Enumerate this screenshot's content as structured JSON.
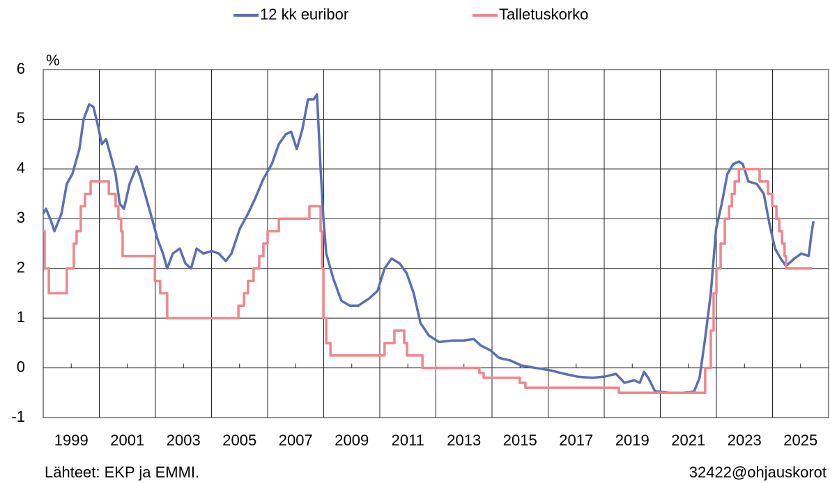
{
  "chart_data": {
    "type": "line",
    "y_label": "%",
    "source": "Lähteet: EKP ja EMMI.",
    "credit": "32422@ohjauskorot",
    "xlim": [
      1998,
      2026
    ],
    "xticks": [
      1999,
      2001,
      2003,
      2005,
      2007,
      2009,
      2011,
      2013,
      2015,
      2017,
      2019,
      2021,
      2023,
      2025
    ],
    "xgrid": [
      2000,
      2002,
      2004,
      2006,
      2008,
      2010,
      2012,
      2014,
      2016,
      2018,
      2020,
      2022,
      2024
    ],
    "ylim": [
      -1,
      6
    ],
    "yticks": [
      -1,
      0,
      1,
      2,
      3,
      4,
      5,
      6
    ],
    "grid": true,
    "legend": "top",
    "series": [
      {
        "name": "12 kk euribor",
        "color": "#5a6fb4",
        "x": [
          1998.0,
          1998.1,
          1998.25,
          1998.4,
          1998.65,
          1998.84,
          1999.04,
          1999.29,
          1999.44,
          1999.64,
          1999.79,
          1999.94,
          2000.09,
          2000.24,
          2000.39,
          2000.58,
          2000.73,
          2000.88,
          2001.08,
          2001.33,
          2001.48,
          2001.68,
          2001.88,
          2002.07,
          2002.27,
          2002.42,
          2002.62,
          2002.87,
          2003.07,
          2003.27,
          2003.47,
          2003.71,
          2004.01,
          2004.26,
          2004.51,
          2004.71,
          2005.01,
          2005.3,
          2005.55,
          2005.85,
          2006.15,
          2006.4,
          2006.65,
          2006.84,
          2007.04,
          2007.24,
          2007.44,
          2007.64,
          2007.76,
          2007.89,
          2007.99,
          2008.09,
          2008.34,
          2008.63,
          2008.93,
          2009.23,
          2009.63,
          2009.92,
          2010.17,
          2010.42,
          2010.71,
          2010.96,
          2011.21,
          2011.45,
          2011.75,
          2012.11,
          2012.61,
          2013.0,
          2013.35,
          2013.6,
          2013.95,
          2014.25,
          2014.65,
          2015.04,
          2015.54,
          2016.09,
          2016.58,
          2017.08,
          2017.58,
          2018.07,
          2018.42,
          2018.72,
          2019.07,
          2019.27,
          2019.42,
          2019.57,
          2019.81,
          2020.31,
          2020.81,
          2021.2,
          2021.4,
          2021.6,
          2021.8,
          2021.99,
          2022.19,
          2022.39,
          2022.6,
          2022.8,
          2022.94,
          2023.14,
          2023.44,
          2023.69,
          2023.89,
          2024.09,
          2024.29,
          2024.48,
          2024.78,
          2025.03,
          2025.29,
          2025.39,
          2025.46
        ],
        "values": [
          3.1,
          3.2,
          3.0,
          2.75,
          3.1,
          3.7,
          3.9,
          4.4,
          5.0,
          5.3,
          5.25,
          4.9,
          4.5,
          4.6,
          4.3,
          3.9,
          3.3,
          3.2,
          3.7,
          4.05,
          3.8,
          3.4,
          3.0,
          2.6,
          2.3,
          2.0,
          2.3,
          2.4,
          2.1,
          2.0,
          2.4,
          2.3,
          2.35,
          2.3,
          2.15,
          2.3,
          2.8,
          3.1,
          3.4,
          3.8,
          4.1,
          4.5,
          4.7,
          4.75,
          4.4,
          4.8,
          5.4,
          5.4,
          5.5,
          4.0,
          3.0,
          2.3,
          1.8,
          1.35,
          1.25,
          1.25,
          1.4,
          1.55,
          2.0,
          2.2,
          2.1,
          1.9,
          1.5,
          0.9,
          0.65,
          0.52,
          0.55,
          0.55,
          0.58,
          0.45,
          0.35,
          0.2,
          0.15,
          0.05,
          0.0,
          -0.05,
          -0.12,
          -0.18,
          -0.2,
          -0.17,
          -0.12,
          -0.3,
          -0.25,
          -0.3,
          -0.08,
          -0.2,
          -0.47,
          -0.5,
          -0.5,
          -0.48,
          -0.2,
          0.6,
          1.5,
          2.8,
          3.3,
          3.9,
          4.1,
          4.15,
          4.1,
          3.75,
          3.7,
          3.5,
          2.9,
          2.4,
          2.2,
          2.05,
          2.2,
          2.3,
          2.25,
          2.7,
          2.95
        ]
      },
      {
        "name": "Talletuskorko",
        "color": "#f0868c",
        "step": "post",
        "x": [
          1998.0,
          1998.05,
          1998.2,
          1998.84,
          1999.09,
          1999.19,
          1999.34,
          1999.49,
          1999.69,
          2000.34,
          2000.58,
          2000.68,
          2000.78,
          2000.83,
          2001.98,
          2002.17,
          2002.42,
          2004.96,
          2005.16,
          2005.3,
          2005.5,
          2005.7,
          2005.85,
          2006.0,
          2006.4,
          2007.49,
          2007.89,
          2007.94,
          2007.99,
          2008.09,
          2008.24,
          2010.17,
          2010.52,
          2010.87,
          2010.97,
          2011.52,
          2013.55,
          2013.7,
          2014.99,
          2015.19,
          2018.52,
          2021.6,
          2021.8,
          2021.9,
          2022.0,
          2022.15,
          2022.3,
          2022.45,
          2022.55,
          2022.65,
          2022.8,
          2023.54,
          2023.84,
          2023.99,
          2024.14,
          2024.24,
          2024.34,
          2024.43,
          2024.48,
          2025.4
        ],
        "values": [
          2.75,
          2.0,
          1.5,
          2.0,
          2.5,
          2.75,
          3.25,
          3.5,
          3.75,
          3.5,
          3.25,
          3.0,
          2.75,
          2.25,
          1.75,
          1.5,
          1.0,
          1.25,
          1.5,
          1.75,
          2.0,
          2.25,
          2.5,
          2.75,
          3.0,
          3.25,
          2.75,
          2.0,
          1.0,
          0.5,
          0.25,
          0.5,
          0.75,
          0.5,
          0.25,
          0.0,
          -0.1,
          -0.2,
          -0.3,
          -0.4,
          -0.5,
          0.0,
          0.75,
          1.5,
          2.0,
          2.5,
          3.0,
          3.25,
          3.5,
          3.75,
          4.0,
          3.75,
          3.5,
          3.25,
          3.0,
          2.75,
          2.5,
          2.25,
          2.0,
          2.0
        ]
      }
    ]
  }
}
